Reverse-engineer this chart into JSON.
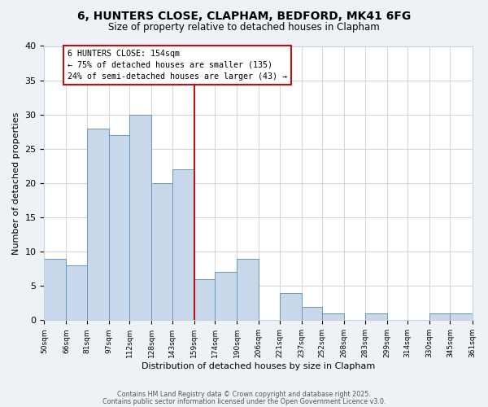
{
  "title": "6, HUNTERS CLOSE, CLAPHAM, BEDFORD, MK41 6FG",
  "subtitle": "Size of property relative to detached houses in Clapham",
  "xlabel": "Distribution of detached houses by size in Clapham",
  "ylabel": "Number of detached properties",
  "bins": [
    50,
    66,
    81,
    97,
    112,
    128,
    143,
    159,
    174,
    190,
    206,
    221,
    237,
    252,
    268,
    283,
    299,
    314,
    330,
    345,
    361
  ],
  "counts": [
    9,
    8,
    28,
    27,
    30,
    20,
    22,
    6,
    7,
    9,
    0,
    4,
    2,
    1,
    0,
    1,
    0,
    0,
    1,
    1
  ],
  "bar_color": "#c8d8ea",
  "bar_edge_color": "#6699bb",
  "vline_x": 159,
  "vline_color": "#bb1111",
  "annotation_title": "6 HUNTERS CLOSE: 154sqm",
  "annotation_line1": "← 75% of detached houses are smaller (135)",
  "annotation_line2": "24% of semi-detached houses are larger (43) →",
  "annotation_box_edge": "#bb1111",
  "ylim": [
    0,
    40
  ],
  "yticks": [
    0,
    5,
    10,
    15,
    20,
    25,
    30,
    35,
    40
  ],
  "tick_labels": [
    "50sqm",
    "66sqm",
    "81sqm",
    "97sqm",
    "112sqm",
    "128sqm",
    "143sqm",
    "159sqm",
    "174sqm",
    "190sqm",
    "206sqm",
    "221sqm",
    "237sqm",
    "252sqm",
    "268sqm",
    "283sqm",
    "299sqm",
    "314sqm",
    "330sqm",
    "345sqm",
    "361sqm"
  ],
  "footer1": "Contains HM Land Registry data © Crown copyright and database right 2025.",
  "footer2": "Contains public sector information licensed under the Open Government Licence v3.0.",
  "bg_color": "#eef2f7",
  "plot_bg_color": "#ffffff",
  "grid_color": "#c8d0dc"
}
